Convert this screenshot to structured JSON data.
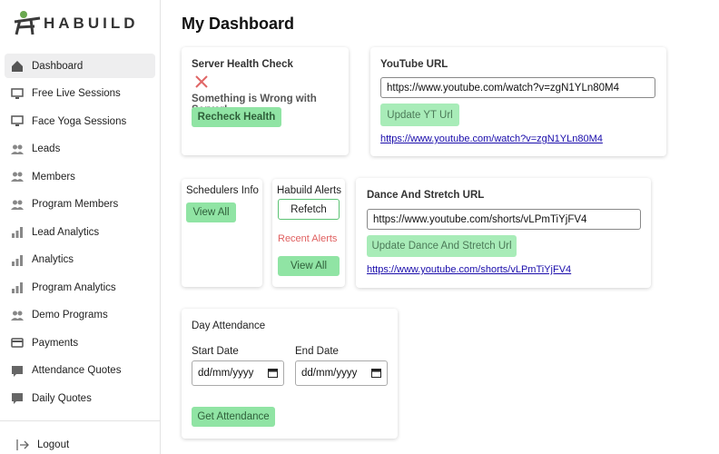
{
  "sidebar": {
    "logo": "HABUILD",
    "nav_items": [
      "Dashboard",
      "Free Live Sessions",
      "Face Yoga Sessions",
      "Leads",
      "Members",
      "Program Members",
      "Lead Analytics",
      "Analytics",
      "Program Analytics",
      "Demo Programs",
      "Payments",
      "Attendance Quotes",
      "Daily Quotes"
    ],
    "logout": "Logout"
  },
  "main": {
    "title": "My Dashboard",
    "server_health": {
      "title": "Server Health Check",
      "status": "Something is Wrong with Server!",
      "button": "Recheck Health"
    },
    "youtube": {
      "title": "YouTube URL",
      "input": "https://www.youtube.com/watch?v=zgN1YLn80M4",
      "button": "Update YT Url",
      "link": "https://www.youtube.com/watch?v=zgN1YLn80M4"
    },
    "schedulers": {
      "title": "Schedulers Info",
      "button": "View All"
    },
    "alerts": {
      "title": "Habuild Alerts",
      "refetch": "Refetch",
      "recent": "Recent Alerts",
      "button": "View All"
    },
    "dance": {
      "title": "Dance And Stretch URL",
      "input": "https://www.youtube.com/shorts/vLPmTiYjFV4",
      "button": "Update Dance And Stretch Url",
      "link": "https://www.youtube.com/shorts/vLPmTiYjFV4"
    },
    "attendance": {
      "title": "Day Attendance",
      "start_label": "Start Date",
      "end_label": "End Date",
      "start_input": "dd/mm/yyyy",
      "end_input": "dd/mm/yyyy",
      "button": "Get Attendance"
    }
  }
}
